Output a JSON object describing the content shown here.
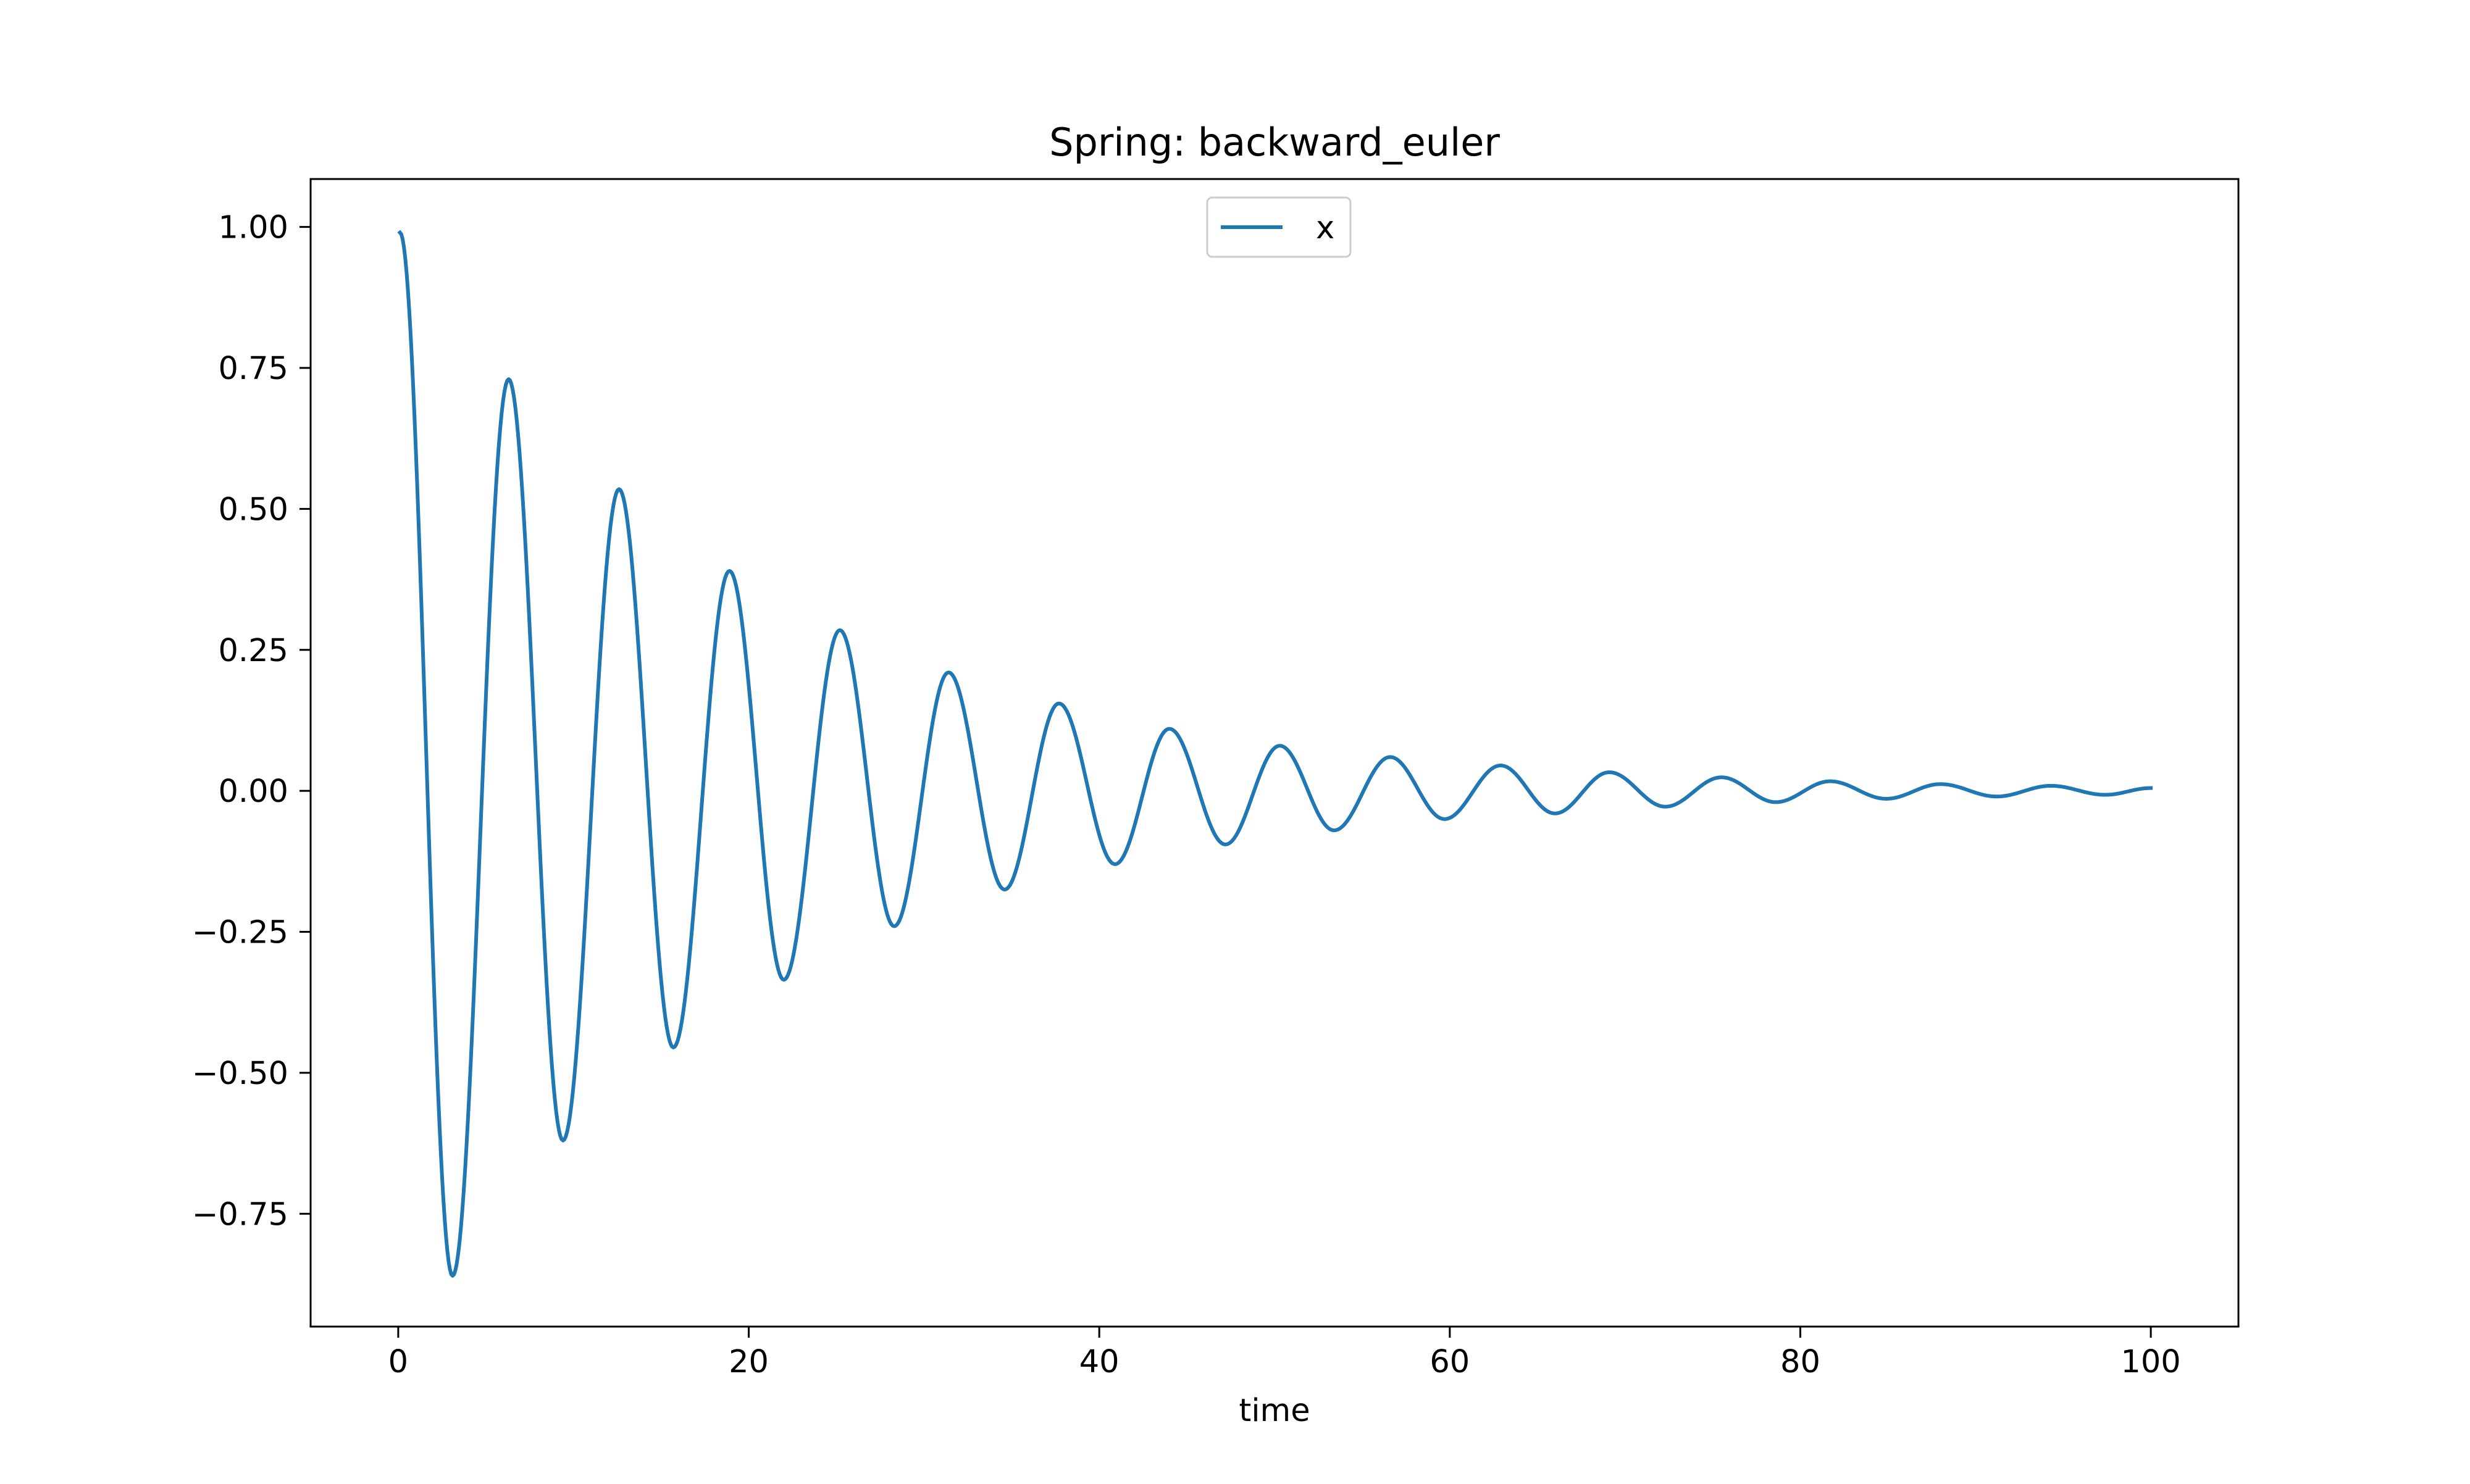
{
  "chart_data": {
    "type": "line",
    "title": "Spring: backward_euler",
    "xlabel": "time",
    "ylabel": "",
    "xlim": [
      -5,
      105
    ],
    "ylim": [
      -0.95,
      1.085
    ],
    "xticks": [
      0,
      20,
      40,
      60,
      80,
      100
    ],
    "xtick_labels": [
      "0",
      "20",
      "40",
      "60",
      "80",
      "100"
    ],
    "yticks": [
      1.0,
      0.75,
      0.5,
      0.25,
      0.0,
      -0.25,
      -0.5,
      -0.75
    ],
    "ytick_labels": [
      "1.00",
      "0.75",
      "0.50",
      "0.25",
      "0.00",
      "−0.25",
      "−0.50",
      "−0.75"
    ],
    "grid": false,
    "legend_position": "upper center",
    "series": [
      {
        "name": "x",
        "color": "#1f77b4",
        "x": [
          0.1,
          3.1,
          6.3,
          9.4,
          12.6,
          15.7,
          18.9,
          22.0,
          25.2,
          28.3,
          31.4,
          34.6,
          37.7,
          40.9,
          44.0,
          47.2,
          50.3,
          53.4,
          56.6,
          59.7,
          62.9,
          66.0,
          69.1,
          72.3,
          75.5,
          78.6,
          81.7,
          84.9,
          88.0,
          91.2,
          94.3,
          97.4,
          100.0
        ],
        "y": [
          0.99,
          -0.86,
          0.73,
          -0.62,
          0.535,
          -0.455,
          0.39,
          -0.335,
          0.285,
          -0.24,
          0.21,
          -0.175,
          0.155,
          -0.13,
          0.11,
          -0.095,
          0.08,
          -0.07,
          0.06,
          -0.05,
          0.045,
          -0.04,
          0.033,
          -0.028,
          0.024,
          -0.02,
          0.017,
          -0.014,
          0.012,
          -0.01,
          0.009,
          -0.007,
          0.005
        ]
      }
    ]
  }
}
